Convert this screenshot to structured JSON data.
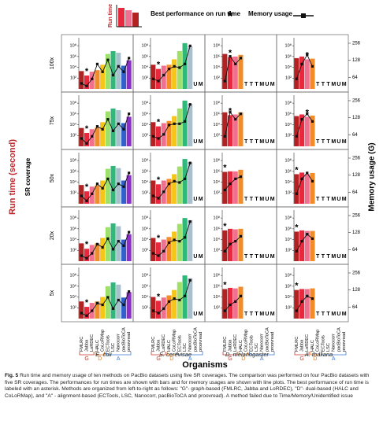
{
  "chart_data": {
    "type": "bar",
    "legend": {
      "run_time": "Run time",
      "best": "Best performance on run time",
      "best_symbol": "*",
      "memory": "Memory usage"
    },
    "y_label": "Run time (second)",
    "y2_label": "Memory usage (G)",
    "row_label": "SR coverage",
    "x_label": "Organisms",
    "log_scale": true,
    "methods": [
      "FMLRC",
      "Jabba",
      "LoRDEC",
      "HALC",
      "CoLoRMap",
      "ECTools",
      "LSC",
      "Nanocorr",
      "pacBioToCA",
      "proovread"
    ],
    "colors": [
      "#b22222",
      "#e8283c",
      "#f07090",
      "#f28c28",
      "#f5c518",
      "#9ee06a",
      "#2fb87a",
      "#a8bfcc",
      "#3060c8",
      "#8a30c8"
    ],
    "method_groups": [
      "G",
      "G",
      "G",
      "D",
      "D",
      "A",
      "A",
      "A",
      "A",
      "A"
    ],
    "group_colors": {
      "G": "#c0392b",
      "D": "#e67e22",
      "A": "#3a7bd5"
    },
    "organisms": [
      "E. coli",
      "S. cerevisae",
      "D. melanogaster",
      "A. thaliana"
    ],
    "coverages": [
      "100x",
      "75x",
      "50x",
      "20x",
      "5x"
    ],
    "ylim": [
      1,
      3000000000
    ],
    "yticks": [
      {
        "value": 100,
        "label": "10²"
      },
      {
        "value": 10000,
        "label": "10⁴"
      },
      {
        "value": 1000000,
        "label": "10⁶"
      },
      {
        "value": 100000000,
        "label": "10⁸"
      }
    ],
    "y2lim": [
      40,
      320
    ],
    "y2ticks": [
      64,
      128,
      256
    ],
    "memory_color": "#111111",
    "panels": [
      {
        "values": [
          2000,
          300,
          1500,
          3000,
          30000,
          3000000,
          10000000,
          5000000,
          20000,
          200000
        ],
        "memory": [
          50,
          45,
          60,
          110,
          80,
          130,
          70,
          100,
          80,
          140
        ],
        "status": [
          null,
          null,
          null,
          null,
          null,
          null,
          null,
          null,
          null,
          null
        ],
        "best": 1
      },
      {
        "values": [
          30000,
          5000,
          20000,
          30000,
          300000,
          10000000,
          300000000,
          80000000,
          null,
          null
        ],
        "memory": [
          60,
          55,
          70,
          90,
          100,
          95,
          110,
          230,
          null,
          null
        ],
        "status": [
          null,
          null,
          null,
          null,
          null,
          null,
          null,
          null,
          "U",
          "M"
        ],
        "best": 1
      },
      {
        "values": [
          3000000,
          800000,
          1000000,
          2000000,
          null,
          null,
          null,
          null,
          null,
          null
        ],
        "memory": [
          55,
          150,
          110,
          140,
          null,
          null,
          null,
          null,
          null,
          null
        ],
        "status": [
          null,
          null,
          null,
          null,
          "T",
          "T",
          "T",
          "M",
          "U",
          "M"
        ],
        "best": 1
      },
      {
        "values": [
          500000,
          1000000,
          300000,
          400000,
          null,
          null,
          null,
          null,
          null,
          null
        ],
        "memory": [
          60,
          110,
          160,
          100,
          null,
          null,
          null,
          null,
          null,
          null
        ],
        "status": [
          null,
          null,
          null,
          null,
          "T",
          "T",
          "T",
          "M",
          "U",
          "M"
        ],
        "best": 2
      },
      {
        "values": [
          2500,
          300,
          1500,
          3000,
          30000,
          3000000,
          10000000,
          5000000,
          20000,
          300000
        ],
        "memory": [
          55,
          45,
          60,
          90,
          80,
          120,
          75,
          100,
          80,
          150
        ],
        "status": [
          null,
          null,
          null,
          null,
          null,
          null,
          null,
          null,
          null,
          null
        ],
        "best": 1
      },
      {
        "values": [
          30000,
          5000,
          20000,
          50000,
          400000,
          10000000,
          300000000,
          70000000,
          null,
          null
        ],
        "memory": [
          60,
          55,
          65,
          95,
          100,
          100,
          110,
          220,
          null,
          null
        ],
        "status": [
          null,
          null,
          null,
          null,
          null,
          null,
          null,
          null,
          "U",
          "M"
        ],
        "best": 1
      },
      {
        "values": [
          2000000,
          600000,
          800000,
          2000000,
          null,
          null,
          null,
          null,
          null,
          null
        ],
        "memory": [
          60,
          160,
          120,
          150,
          null,
          null,
          null,
          null,
          null,
          null
        ],
        "status": [
          null,
          null,
          null,
          null,
          "T",
          "T",
          "T",
          "M",
          "U",
          "M"
        ],
        "best": 1
      },
      {
        "values": [
          400000,
          800000,
          300000,
          500000,
          null,
          null,
          null,
          null,
          null,
          null
        ],
        "memory": [
          60,
          120,
          150,
          110,
          null,
          null,
          null,
          null,
          null,
          null
        ],
        "status": [
          null,
          null,
          null,
          null,
          "T",
          "T",
          "T",
          "M",
          "U",
          "M"
        ],
        "best": 2
      },
      {
        "values": [
          3000,
          200,
          1500,
          2500,
          20000,
          3000000,
          10000000,
          4000000,
          20000,
          200000
        ],
        "memory": [
          55,
          45,
          60,
          90,
          75,
          110,
          70,
          90,
          80,
          140
        ],
        "status": [
          null,
          null,
          null,
          null,
          null,
          null,
          null,
          null,
          null,
          null
        ],
        "best": 1
      },
      {
        "values": [
          20000,
          4000,
          20000,
          40000,
          300000,
          8000000,
          200000000,
          50000000,
          null,
          null
        ],
        "memory": [
          55,
          50,
          65,
          90,
          100,
          95,
          110,
          210,
          null,
          null
        ],
        "status": [
          null,
          null,
          null,
          null,
          null,
          null,
          null,
          null,
          "U",
          "M"
        ],
        "best": 1
      },
      {
        "values": [
          800000,
          1000000,
          1000000,
          2000000,
          null,
          null,
          null,
          null,
          null,
          null
        ],
        "memory": [
          70,
          90,
          110,
          120,
          null,
          null,
          null,
          null,
          null,
          null
        ],
        "status": [
          null,
          null,
          null,
          null,
          "T",
          "T",
          "T",
          "M",
          "U",
          "M"
        ],
        "best": 0
      },
      {
        "values": [
          300000,
          600000,
          300000,
          500000,
          null,
          null,
          null,
          null,
          null,
          null
        ],
        "memory": [
          60,
          110,
          140,
          100,
          null,
          null,
          null,
          null,
          null,
          null
        ],
        "status": [
          null,
          null,
          null,
          null,
          "T",
          "T",
          "T",
          "M",
          "U",
          "M"
        ],
        "best": 0
      },
      {
        "values": [
          2000,
          200,
          1000,
          2000,
          20000,
          2000000,
          10000000,
          3000000,
          10000,
          100000
        ],
        "memory": [
          50,
          45,
          55,
          80,
          70,
          100,
          65,
          90,
          75,
          130
        ],
        "status": [
          null,
          null,
          null,
          null,
          null,
          null,
          null,
          null,
          null,
          null
        ],
        "best": 1
      },
      {
        "values": [
          20000,
          3000,
          10000,
          30000,
          300000,
          8000000,
          100000000,
          40000000,
          null,
          null
        ],
        "memory": [
          55,
          50,
          60,
          85,
          95,
          90,
          105,
          200,
          null,
          null
        ],
        "status": [
          null,
          null,
          null,
          null,
          null,
          null,
          null,
          null,
          "U",
          "M"
        ],
        "best": 1
      },
      {
        "values": [
          500000,
          1000000,
          800000,
          1000000,
          null,
          null,
          null,
          null,
          null,
          null
        ],
        "memory": [
          60,
          80,
          90,
          110,
          null,
          null,
          null,
          null,
          null,
          null
        ],
        "status": [
          null,
          null,
          null,
          null,
          "T",
          "T",
          "T",
          "M",
          "U",
          "M"
        ],
        "best": 0
      },
      {
        "values": [
          300000,
          500000,
          400000,
          400000,
          null,
          null,
          null,
          null,
          null,
          null
        ],
        "memory": [
          60,
          90,
          120,
          100,
          null,
          null,
          null,
          null,
          null,
          null
        ],
        "status": [
          null,
          null,
          null,
          null,
          "T",
          "T",
          "T",
          "M",
          "U",
          "M"
        ],
        "best": 0
      },
      {
        "values": [
          1500,
          150,
          800,
          1500,
          10000,
          1000000,
          5000000,
          2000000,
          8000,
          80000
        ],
        "memory": [
          50,
          45,
          55,
          75,
          70,
          95,
          60,
          85,
          70,
          120
        ],
        "status": [
          null,
          null,
          null,
          null,
          null,
          null,
          null,
          null,
          null,
          null
        ],
        "best": 1
      },
      {
        "values": [
          10000,
          2000,
          8000,
          20000,
          200000,
          6000000,
          100000000,
          30000000,
          null,
          null
        ],
        "memory": [
          55,
          50,
          60,
          80,
          90,
          85,
          100,
          190,
          null,
          null
        ],
        "status": [
          null,
          null,
          null,
          null,
          null,
          null,
          null,
          null,
          "U",
          "M"
        ],
        "best": 1
      },
      {
        "values": [
          300000,
          500000,
          400000,
          800000,
          null,
          null,
          null,
          null,
          null,
          null
        ],
        "memory": [
          55,
          70,
          80,
          100,
          null,
          null,
          null,
          null,
          null,
          null
        ],
        "status": [
          null,
          null,
          null,
          null,
          "T",
          "T",
          "T",
          "M",
          "U",
          "M"
        ],
        "best": 0
      },
      {
        "values": [
          200000,
          300000,
          300000,
          400000,
          null,
          null,
          null,
          null,
          null,
          null
        ],
        "memory": [
          55,
          80,
          100,
          90,
          null,
          null,
          null,
          null,
          null,
          null
        ],
        "status": [
          null,
          null,
          null,
          null,
          "T",
          "T",
          "T",
          "M",
          "U",
          "M"
        ],
        "best": 0
      }
    ],
    "caption_label": "Fig. 5",
    "caption": "Run time and memory usage of ten methods on PacBio datasets using five SR coverages. The comparison was performed on four PacBio datasets with five SR coverages. The performances for run times are shown with bars and for memory usages are shown with line plots. The best performance of run time is labeled with an asterisk. Methods are organized from left-to-right as follows: \"G\"- graph-based (FMLRC, Jabba and LoRDEC), \"D\"- dual-based (HALC and CoLoRMap), and \"A\" - alignment-based (ECTools, LSC, Nanocorr, pacBioToCA and proovread). A method failed due to Time/Memory/Unidentified issue"
  }
}
